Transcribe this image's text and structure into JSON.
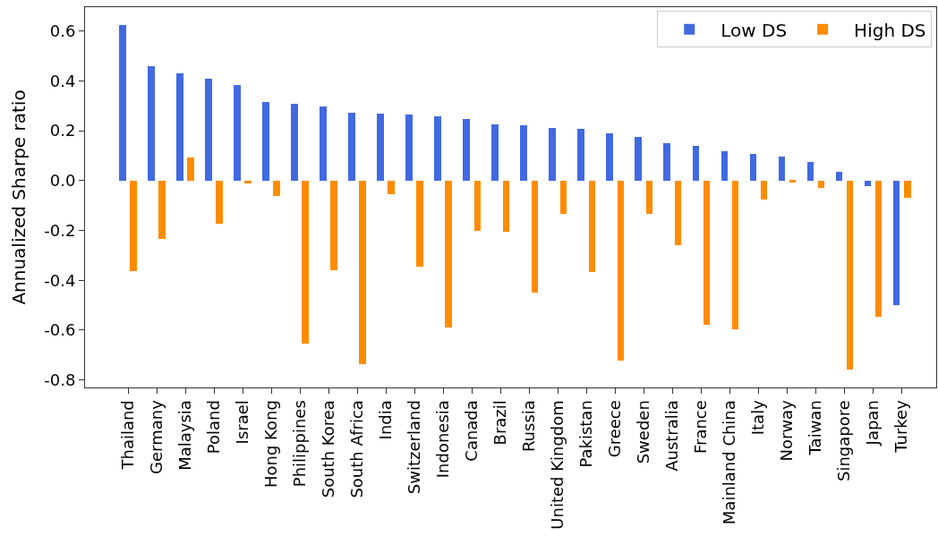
{
  "chart_data": {
    "type": "bar",
    "ylabel": "Annualized Sharpe ratio",
    "categories": [
      "Thailand",
      "Germany",
      "Malaysia",
      "Poland",
      "Israel",
      "Hong Kong",
      "Philippines",
      "South Korea",
      "South Africa",
      "India",
      "Switzerland",
      "Indonesia",
      "Canada",
      "Brazil",
      "Russia",
      "United Kingdom",
      "Pakistan",
      "Greece",
      "Sweden",
      "Australia",
      "France",
      "Mainland China",
      "Italy",
      "Norway",
      "Taiwan",
      "Singapore",
      "Japan",
      "Turkey"
    ],
    "series": [
      {
        "name": "Low DS",
        "color": "#4169e1",
        "values": [
          0.625,
          0.46,
          0.43,
          0.41,
          0.385,
          0.315,
          0.31,
          0.297,
          0.272,
          0.27,
          0.266,
          0.257,
          0.246,
          0.226,
          0.222,
          0.212,
          0.207,
          0.19,
          0.174,
          0.149,
          0.139,
          0.119,
          0.108,
          0.096,
          0.075,
          0.036,
          -0.022,
          -0.498
        ]
      },
      {
        "name": "High DS",
        "color": "#ff8c00",
        "values": [
          -0.363,
          -0.235,
          0.094,
          -0.172,
          -0.012,
          -0.063,
          -0.653,
          -0.359,
          -0.737,
          -0.054,
          -0.347,
          -0.588,
          -0.202,
          -0.205,
          -0.449,
          -0.133,
          -0.367,
          -0.724,
          -0.132,
          -0.26,
          -0.58,
          -0.596,
          -0.076,
          -0.007,
          -0.029,
          -0.757,
          -0.546,
          -0.069
        ]
      }
    ],
    "ylim": [
      -0.83,
      0.696
    ],
    "yticks": [
      -0.8,
      -0.6,
      -0.4,
      -0.2,
      {
        "value": 0,
        "label": "0.0"
      },
      0.2,
      0.4,
      0.6
    ],
    "legend": "top right"
  }
}
